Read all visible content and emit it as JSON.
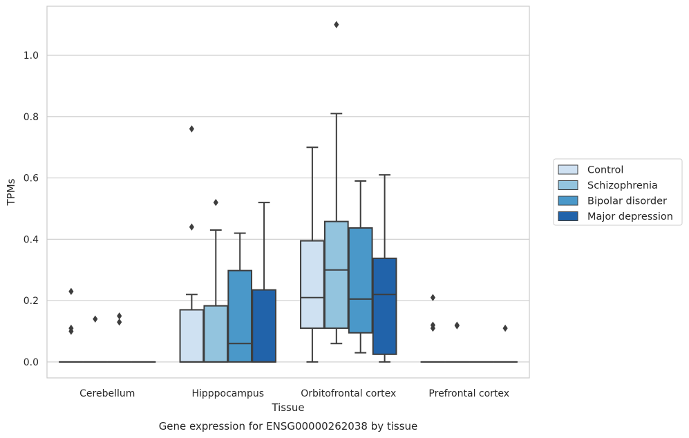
{
  "chart_data": {
    "type": "box",
    "title": "",
    "caption": "Gene expression for ENSG00000262038 by tissue",
    "xlabel": "Tissue",
    "ylabel": "TPMs",
    "ylim": [
      -0.052,
      1.16
    ],
    "yticks": [
      "0.0",
      "0.2",
      "0.4",
      "0.6",
      "0.8",
      "1.0"
    ],
    "grid": "horizontal",
    "legend_position": "right",
    "categories": [
      "Cerebellum",
      "Hipppocampus",
      "Orbitofrontal cortex",
      "Prefrontal cortex"
    ],
    "series": [
      {
        "name": "Control",
        "color": "#cfe1f2",
        "boxes": [
          {
            "whislo": 0.0,
            "q1": 0.0,
            "med": 0.0,
            "q3": 0.0,
            "whishi": 0.0,
            "fliers": [
              0.23,
              0.11,
              0.1
            ]
          },
          {
            "whislo": 0.0,
            "q1": 0.0,
            "med": 0.0,
            "q3": 0.17,
            "whishi": 0.22,
            "fliers": [
              0.76,
              0.44
            ]
          },
          {
            "whislo": 0.0,
            "q1": 0.11,
            "med": 0.21,
            "q3": 0.395,
            "whishi": 0.7,
            "fliers": []
          },
          {
            "whislo": 0.0,
            "q1": 0.0,
            "med": 0.0,
            "q3": 0.0,
            "whishi": 0.0,
            "fliers": [
              0.21,
              0.12,
              0.11
            ]
          }
        ]
      },
      {
        "name": "Schizophrenia",
        "color": "#93c4de",
        "boxes": [
          {
            "whislo": 0.0,
            "q1": 0.0,
            "med": 0.0,
            "q3": 0.0,
            "whishi": 0.0,
            "fliers": [
              0.14
            ]
          },
          {
            "whislo": 0.0,
            "q1": 0.0,
            "med": 0.0,
            "q3": 0.183,
            "whishi": 0.43,
            "fliers": [
              0.52
            ]
          },
          {
            "whislo": 0.06,
            "q1": 0.11,
            "med": 0.3,
            "q3": 0.458,
            "whishi": 0.81,
            "fliers": [
              1.1
            ]
          },
          {
            "whislo": 0.0,
            "q1": 0.0,
            "med": 0.0,
            "q3": 0.0,
            "whishi": 0.0,
            "fliers": [
              0.12,
              0.118
            ]
          }
        ]
      },
      {
        "name": "Bipolar disorder",
        "color": "#4a98c9",
        "boxes": [
          {
            "whislo": 0.0,
            "q1": 0.0,
            "med": 0.0,
            "q3": 0.0,
            "whishi": 0.0,
            "fliers": [
              0.15,
              0.13
            ]
          },
          {
            "whislo": 0.0,
            "q1": 0.0,
            "med": 0.06,
            "q3": 0.298,
            "whishi": 0.42,
            "fliers": []
          },
          {
            "whislo": 0.03,
            "q1": 0.095,
            "med": 0.205,
            "q3": 0.437,
            "whishi": 0.59,
            "fliers": []
          },
          {
            "whislo": 0.0,
            "q1": 0.0,
            "med": 0.0,
            "q3": 0.0,
            "whishi": 0.0,
            "fliers": []
          }
        ]
      },
      {
        "name": "Major depression",
        "color": "#2163aa",
        "boxes": [
          {
            "whislo": 0.0,
            "q1": 0.0,
            "med": 0.0,
            "q3": 0.0,
            "whishi": 0.0,
            "fliers": []
          },
          {
            "whislo": 0.0,
            "q1": 0.0,
            "med": 0.0,
            "q3": 0.235,
            "whishi": 0.52,
            "fliers": []
          },
          {
            "whislo": 0.0,
            "q1": 0.025,
            "med": 0.22,
            "q3": 0.338,
            "whishi": 0.61,
            "fliers": []
          },
          {
            "whislo": 0.0,
            "q1": 0.0,
            "med": 0.0,
            "q3": 0.0,
            "whishi": 0.0,
            "fliers": [
              0.11
            ]
          }
        ]
      }
    ]
  }
}
